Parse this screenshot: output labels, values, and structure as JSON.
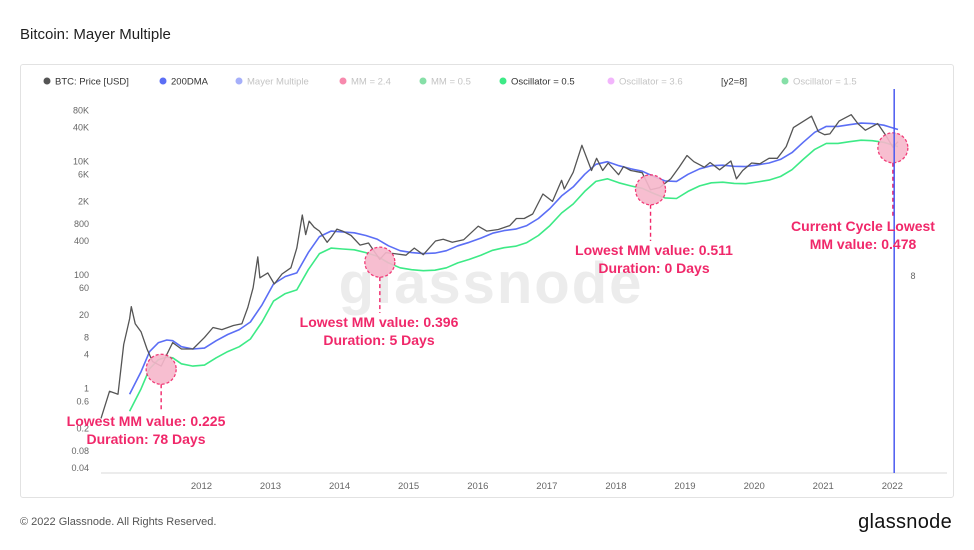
{
  "page": {
    "title": "Bitcoin: Mayer Multiple",
    "copyright": "© 2022 Glassnode. All Rights Reserved.",
    "brand": "glassnode",
    "watermark": "glassnode"
  },
  "colors": {
    "price": "#555555",
    "dma": "#5b6ef5",
    "oscillator": "#3dea86",
    "annotation": "#f0286a",
    "marker_fill": "#f7b8cc",
    "vline": "#4a5af0"
  },
  "chart_data": {
    "type": "line",
    "title": "Bitcoin: Mayer Multiple",
    "y_scale": "log",
    "ylim": [
      0.04,
      150000
    ],
    "xlim": [
      "2011-01-01",
      "2022-07-31"
    ],
    "x_tick_labels": [
      "2012",
      "2013",
      "2014",
      "2015",
      "2016",
      "2017",
      "2018",
      "2019",
      "2020",
      "2021",
      "2022"
    ],
    "y_tick_labels": [
      "0.04",
      "0.08",
      "0.2",
      "0.6",
      "1",
      "4",
      "8",
      "20",
      "60",
      "100",
      "400",
      "800",
      "2K",
      "6K",
      "10K",
      "40K",
      "80K"
    ],
    "y_tick_values": [
      0.04,
      0.08,
      0.2,
      0.6,
      1,
      4,
      8,
      20,
      60,
      100,
      400,
      800,
      2000,
      6000,
      10000,
      40000,
      80000
    ],
    "right_axis_label": "8",
    "grid": false,
    "legend_position": "top",
    "legend": [
      {
        "label": "BTC: Price [USD]",
        "color": "#555555",
        "active": true
      },
      {
        "label": "200DMA",
        "color": "#5b6ef5",
        "active": true
      },
      {
        "label": "Mayer Multiple",
        "color": "#5b6ef5",
        "active": false
      },
      {
        "label": "MM = 2.4",
        "color": "#f0286a",
        "active": false
      },
      {
        "label": "MM = 0.5",
        "color": "#22c55e",
        "active": false
      },
      {
        "label": "Oscillator = 0.5",
        "color": "#3dea86",
        "active": true
      },
      {
        "label": "Oscillator = 3.6",
        "color": "#e879f9",
        "active": false
      },
      {
        "label": "[y2=8]",
        "color": "",
        "active": true
      },
      {
        "label": "Oscillator = 1.5",
        "color": "#22c55e",
        "active": false
      }
    ],
    "series": [
      {
        "name": "BTC: Price [USD]",
        "x": [
          "2011-01-01",
          "2011-02-15",
          "2011-04-01",
          "2011-05-01",
          "2011-06-01",
          "2011-06-10",
          "2011-07-01",
          "2011-08-01",
          "2011-09-01",
          "2011-10-01",
          "2011-11-15",
          "2011-12-15",
          "2012-01-15",
          "2012-03-01",
          "2012-05-01",
          "2012-07-01",
          "2012-08-15",
          "2012-10-01",
          "2012-12-01",
          "2013-01-15",
          "2013-02-15",
          "2013-03-15",
          "2013-04-09",
          "2013-04-20",
          "2013-06-01",
          "2013-07-05",
          "2013-08-15",
          "2013-10-01",
          "2013-11-01",
          "2013-11-30",
          "2013-12-18",
          "2014-01-05",
          "2014-02-01",
          "2014-03-01",
          "2014-04-10",
          "2014-05-01",
          "2014-06-01",
          "2014-07-01",
          "2014-08-15",
          "2014-10-01",
          "2014-11-15",
          "2015-01-14",
          "2015-02-15",
          "2015-04-01",
          "2015-06-01",
          "2015-07-15",
          "2015-09-01",
          "2015-11-04",
          "2015-12-15",
          "2016-02-01",
          "2016-04-01",
          "2016-06-17",
          "2016-08-01",
          "2016-10-01",
          "2016-12-01",
          "2017-01-05",
          "2017-02-15",
          "2017-04-01",
          "2017-05-25",
          "2017-07-15",
          "2017-09-01",
          "2017-09-15",
          "2017-11-01",
          "2017-12-17",
          "2018-02-06",
          "2018-03-05",
          "2018-04-06",
          "2018-05-05",
          "2018-06-29",
          "2018-07-25",
          "2018-09-01",
          "2018-11-01",
          "2018-12-15",
          "2019-02-01",
          "2019-04-01",
          "2019-05-15",
          "2019-06-26",
          "2019-08-01",
          "2019-09-25",
          "2019-10-26",
          "2019-12-15",
          "2020-02-13",
          "2020-03-13",
          "2020-04-15",
          "2020-06-01",
          "2020-07-15",
          "2020-09-01",
          "2020-10-15",
          "2020-12-01",
          "2021-01-08",
          "2021-02-15",
          "2021-04-14",
          "2021-05-20",
          "2021-06-22",
          "2021-07-20",
          "2021-09-07",
          "2021-11-10",
          "2021-12-15",
          "2022-01-24",
          "2022-03-30",
          "2022-05-12",
          "2022-06-18",
          "2022-07-15"
        ],
        "values": [
          0.3,
          0.9,
          0.8,
          6,
          17,
          28,
          14,
          10,
          5,
          3,
          2.5,
          4,
          6.5,
          5,
          5,
          8,
          12,
          11,
          13,
          14,
          27,
          60,
          210,
          90,
          110,
          70,
          105,
          135,
          300,
          1150,
          520,
          900,
          700,
          600,
          380,
          460,
          650,
          600,
          500,
          340,
          370,
          190,
          250,
          240,
          225,
          300,
          230,
          400,
          430,
          380,
          420,
          730,
          600,
          640,
          750,
          1000,
          1000,
          1200,
          2700,
          2000,
          4700,
          3300,
          6500,
          19500,
          7000,
          11500,
          7000,
          9500,
          5900,
          8200,
          7000,
          6400,
          3200,
          3500,
          5000,
          8000,
          12900,
          10000,
          8000,
          9700,
          7200,
          10300,
          5000,
          7000,
          9500,
          9200,
          11500,
          11500,
          18500,
          40000,
          48000,
          63500,
          34000,
          30000,
          31000,
          52000,
          67500,
          47000,
          36000,
          47000,
          29000,
          18000,
          22500
        ]
      },
      {
        "name": "200DMA",
        "x": [
          "2011-06-01",
          "2011-08-01",
          "2011-09-15",
          "2011-11-01",
          "2011-12-15",
          "2012-01-15",
          "2012-03-01",
          "2012-05-01",
          "2012-07-01",
          "2012-09-01",
          "2012-11-01",
          "2013-01-01",
          "2013-03-01",
          "2013-05-01",
          "2013-07-01",
          "2013-09-01",
          "2013-11-01",
          "2014-01-01",
          "2014-03-01",
          "2014-05-01",
          "2014-07-01",
          "2014-09-01",
          "2014-11-01",
          "2015-01-01",
          "2015-03-01",
          "2015-05-01",
          "2015-07-01",
          "2015-09-01",
          "2015-11-01",
          "2016-01-01",
          "2016-03-01",
          "2016-05-01",
          "2016-07-01",
          "2016-09-01",
          "2016-11-01",
          "2017-01-01",
          "2017-03-01",
          "2017-05-01",
          "2017-07-01",
          "2017-09-01",
          "2017-11-01",
          "2018-01-01",
          "2018-03-01",
          "2018-05-01",
          "2018-07-01",
          "2018-09-01",
          "2018-11-01",
          "2019-01-01",
          "2019-03-01",
          "2019-05-01",
          "2019-07-01",
          "2019-09-01",
          "2019-11-01",
          "2020-01-01",
          "2020-03-01",
          "2020-05-01",
          "2020-07-01",
          "2020-09-01",
          "2020-11-01",
          "2021-01-01",
          "2021-03-01",
          "2021-05-01",
          "2021-07-01",
          "2021-09-01",
          "2021-11-01",
          "2022-01-01",
          "2022-03-01",
          "2022-05-01",
          "2022-07-15"
        ],
        "values": [
          0.8,
          2,
          4.5,
          6.5,
          7.2,
          7,
          5.5,
          5,
          5.2,
          7,
          9,
          11,
          15,
          30,
          70,
          95,
          110,
          250,
          480,
          600,
          580,
          560,
          500,
          430,
          330,
          270,
          250,
          240,
          245,
          270,
          330,
          380,
          450,
          550,
          610,
          650,
          750,
          1000,
          1500,
          2500,
          3600,
          6000,
          9000,
          10000,
          8500,
          7500,
          6800,
          5500,
          4600,
          4500,
          6000,
          7500,
          8500,
          8700,
          8300,
          8200,
          8800,
          9500,
          11000,
          14500,
          22000,
          33000,
          42000,
          42000,
          45000,
          48000,
          47000,
          44000,
          37000
        ]
      },
      {
        "name": "Oscillator = 0.5",
        "x": [
          "2011-06-01",
          "2011-08-01",
          "2011-09-15",
          "2011-11-01",
          "2011-12-15",
          "2012-01-15",
          "2012-03-01",
          "2012-05-01",
          "2012-07-01",
          "2012-09-01",
          "2012-11-01",
          "2013-01-01",
          "2013-03-01",
          "2013-05-01",
          "2013-07-01",
          "2013-09-01",
          "2013-11-01",
          "2014-01-01",
          "2014-03-01",
          "2014-05-01",
          "2014-07-01",
          "2014-09-01",
          "2014-11-01",
          "2015-01-01",
          "2015-03-01",
          "2015-05-01",
          "2015-07-01",
          "2015-09-01",
          "2015-11-01",
          "2016-01-01",
          "2016-03-01",
          "2016-05-01",
          "2016-07-01",
          "2016-09-01",
          "2016-11-01",
          "2017-01-01",
          "2017-03-01",
          "2017-05-01",
          "2017-07-01",
          "2017-09-01",
          "2017-11-01",
          "2018-01-01",
          "2018-03-01",
          "2018-05-01",
          "2018-07-01",
          "2018-09-01",
          "2018-11-01",
          "2019-01-01",
          "2019-03-01",
          "2019-05-01",
          "2019-07-01",
          "2019-09-01",
          "2019-11-01",
          "2020-01-01",
          "2020-03-01",
          "2020-05-01",
          "2020-07-01",
          "2020-09-01",
          "2020-11-01",
          "2021-01-01",
          "2021-03-01",
          "2021-05-01",
          "2021-07-01",
          "2021-09-01",
          "2021-11-01",
          "2022-01-01",
          "2022-03-01",
          "2022-05-01",
          "2022-07-15"
        ],
        "values": [
          0.4,
          1,
          2.25,
          3.25,
          3.6,
          3.5,
          2.75,
          2.5,
          2.6,
          3.5,
          4.5,
          5.5,
          7.5,
          15,
          35,
          47.5,
          55,
          125,
          240,
          300,
          290,
          280,
          250,
          215,
          165,
          135,
          125,
          120,
          122.5,
          135,
          165,
          190,
          225,
          275,
          305,
          325,
          375,
          500,
          750,
          1250,
          1800,
          3000,
          4500,
          5000,
          4250,
          3750,
          3400,
          2750,
          2300,
          2250,
          3000,
          3750,
          4250,
          4350,
          4150,
          4100,
          4400,
          4750,
          5500,
          7250,
          11000,
          16500,
          21000,
          21000,
          22500,
          24000,
          23500,
          22000,
          18500
        ]
      }
    ],
    "annotations": [
      {
        "lines": [
          "Lowest MM value: 0.225",
          "Duration: 78 Days"
        ],
        "x": "2011-11-15",
        "y": 2.2
      },
      {
        "lines": [
          "Lowest MM value: 0.396",
          "Duration: 5 Days"
        ],
        "x": "2015-01-14",
        "y": 170
      },
      {
        "lines": [
          "Lowest MM value: 0.511",
          "Duration: 0 Days"
        ],
        "x": "2018-12-15",
        "y": 3200
      },
      {
        "lines": [
          "Current Cycle Lowest",
          "MM value: 0.478"
        ],
        "x": "2022-06-18",
        "y": 17600
      }
    ],
    "marker_line_date": "2022-06-25"
  }
}
